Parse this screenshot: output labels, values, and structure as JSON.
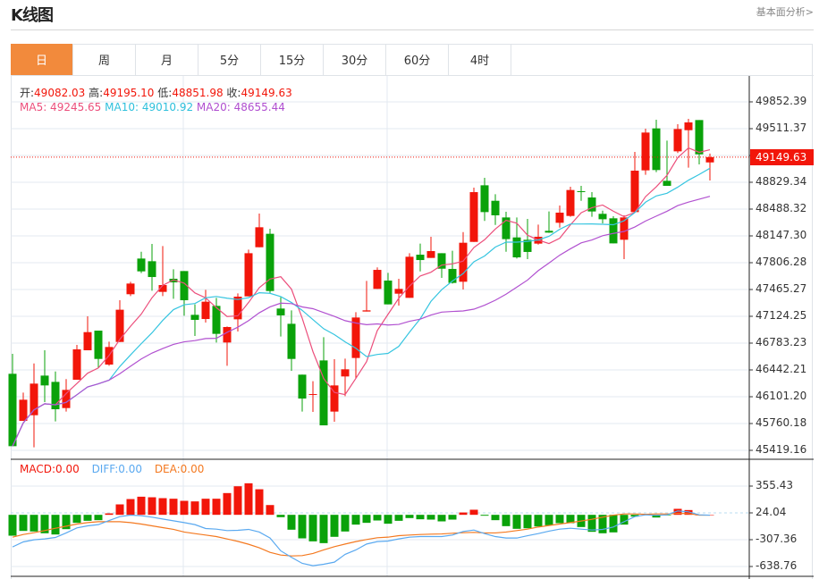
{
  "header": {
    "title": "K线图",
    "fundamental_link": "基本面分析>"
  },
  "tabs": [
    {
      "label": "日",
      "active": true
    },
    {
      "label": "周"
    },
    {
      "label": "月"
    },
    {
      "label": "5分"
    },
    {
      "label": "15分"
    },
    {
      "label": "30分"
    },
    {
      "label": "60分"
    },
    {
      "label": "4时"
    }
  ],
  "ohlc_info": {
    "open_label": "开:",
    "open": "49082.03",
    "high_label": "高:",
    "high": "49195.10",
    "low_label": "低:",
    "low": "48851.98",
    "close_label": "收:",
    "close": "49149.63"
  },
  "ma_info": {
    "ma5": "MA5: 49245.65",
    "ma10": "MA10: 49010.92",
    "ma20": "MA20: 48655.44"
  },
  "last_price_tag": "49149.63",
  "macd_info": {
    "macd": "MACD:0.00",
    "diff": "DIFF:0.00",
    "dea": "DEA:0.00"
  },
  "colors": {
    "up": "#f2160a",
    "down": "#0aa20a",
    "ma5": "#ec4f7c",
    "ma10": "#36c5e0",
    "ma20": "#b151d0",
    "diff": "#5aa9f0",
    "dea": "#f47920",
    "active_tab": "#f28a3c"
  },
  "chart_data": [
    {
      "type": "candlestick",
      "y_ticks": [
        "49852.39",
        "49511.37",
        "49170.35",
        "48829.34",
        "48488.32",
        "48147.30",
        "47806.28",
        "47465.27",
        "47124.25",
        "46783.23",
        "46442.21",
        "46101.20",
        "45760.18",
        "45419.16"
      ],
      "ylim": [
        45419.16,
        49852.39
      ],
      "grid": true,
      "ma_periods": [
        5,
        10,
        20
      ],
      "ohlc": [
        [
          46393,
          46647,
          45472,
          45472
        ],
        [
          45794,
          46154,
          45794,
          46063
        ],
        [
          45866,
          46525,
          45457,
          46268
        ],
        [
          46370,
          46692,
          46033,
          46245
        ],
        [
          46290,
          46423,
          45787,
          45942
        ],
        [
          45957,
          46325,
          45912,
          46188
        ],
        [
          46317,
          46760,
          46317,
          46704
        ],
        [
          46692,
          47124,
          46692,
          46923
        ],
        [
          46942,
          46942,
          46469,
          46582
        ],
        [
          46510,
          46802,
          46495,
          46734
        ],
        [
          46798,
          47329,
          46798,
          47208
        ],
        [
          47405,
          47564,
          47382,
          47541
        ],
        [
          47859,
          47946,
          47674,
          47696
        ],
        [
          47825,
          48045,
          47450,
          47624
        ],
        [
          47435,
          48018,
          47382,
          47522
        ],
        [
          47602,
          47723,
          47348,
          47556
        ],
        [
          47700,
          47700,
          47132,
          47329
        ],
        [
          47143,
          47276,
          46874,
          47079
        ],
        [
          47090,
          47461,
          47045,
          47310
        ],
        [
          47257,
          47359,
          46791,
          46901
        ],
        [
          46791,
          46995,
          46495,
          46988
        ],
        [
          47086,
          47416,
          46931,
          47374
        ],
        [
          47378,
          47973,
          47378,
          47927
        ],
        [
          48003,
          48431,
          48003,
          48257
        ],
        [
          48174,
          48238,
          47412,
          47446
        ],
        [
          47223,
          47367,
          46867,
          47136
        ],
        [
          47029,
          47200,
          46431,
          46582
        ],
        [
          46382,
          46382,
          45912,
          46078
        ],
        [
          46128,
          46298,
          45908,
          46135
        ],
        [
          46563,
          46859,
          45737,
          45737
        ],
        [
          45912,
          46579,
          45783,
          46245
        ],
        [
          46359,
          46586,
          46109,
          46450
        ],
        [
          46594,
          47177,
          46336,
          47109
        ],
        [
          47185,
          47575,
          47185,
          47200
        ],
        [
          47473,
          47746,
          47473,
          47715
        ],
        [
          47579,
          47677,
          47276,
          47276
        ],
        [
          47412,
          47602,
          47261,
          47473
        ],
        [
          47359,
          47927,
          47359,
          47882
        ],
        [
          47908,
          48049,
          47696,
          47840
        ],
        [
          47867,
          48136,
          47867,
          47954
        ],
        [
          47927,
          47927,
          47613,
          47730
        ],
        [
          47727,
          47958,
          47541,
          47549
        ],
        [
          47564,
          48196,
          47465,
          48060
        ],
        [
          48071,
          48761,
          48071,
          48704
        ],
        [
          48791,
          48886,
          48337,
          48450
        ],
        [
          48594,
          48678,
          48287,
          48409
        ],
        [
          48382,
          48454,
          47946,
          48106
        ],
        [
          48128,
          48382,
          47859,
          47874
        ],
        [
          48098,
          48363,
          47852,
          47943
        ],
        [
          48049,
          48291,
          48037,
          48136
        ],
        [
          48212,
          48458,
          48185,
          48189
        ],
        [
          48314,
          48534,
          48253,
          48443
        ],
        [
          48401,
          48772,
          48390,
          48731
        ],
        [
          48716,
          48784,
          48594,
          48708
        ],
        [
          48636,
          48704,
          48390,
          48458
        ],
        [
          48428,
          48469,
          48306,
          48359
        ],
        [
          48371,
          48397,
          48052,
          48052
        ],
        [
          48098,
          48409,
          47852,
          48382
        ],
        [
          48450,
          49216,
          48450,
          48977
        ],
        [
          48981,
          49511,
          48924,
          49462
        ],
        [
          49515,
          49625,
          48958,
          48985
        ],
        [
          48848,
          49360,
          48784,
          48784
        ],
        [
          49223,
          49568,
          49201,
          49507
        ],
        [
          49492,
          49636,
          49015,
          49591
        ],
        [
          49621,
          49621,
          49057,
          49185
        ],
        [
          49082.03,
          49195.1,
          48851.98,
          49149.63
        ]
      ],
      "last_price": 49149.63
    },
    {
      "type": "bar+line",
      "y_ticks": [
        "355.43",
        "24.04",
        "-307.36",
        "-638.76"
      ],
      "ylim": [
        -638.76,
        355.43
      ],
      "macd_hist": [
        -258,
        -199,
        -206,
        -228,
        -243,
        -177,
        -99,
        -74,
        -66,
        18,
        129,
        195,
        224,
        217,
        206,
        199,
        173,
        166,
        199,
        199,
        269,
        353,
        390,
        316,
        121,
        -29,
        -184,
        -291,
        -328,
        -350,
        -272,
        -206,
        -121,
        -99,
        -70,
        -110,
        -74,
        -40,
        -55,
        -59,
        -81,
        -59,
        29,
        63,
        -11,
        -66,
        -140,
        -173,
        -166,
        -144,
        -129,
        -103,
        -103,
        -151,
        -210,
        -228,
        -217,
        -121,
        -22,
        11,
        -33,
        -7,
        74,
        59,
        0,
        0
      ],
      "diff": [
        -397,
        -335,
        -309,
        -298,
        -280,
        -224,
        -162,
        -136,
        -121,
        -70,
        -22,
        -4,
        -11,
        -29,
        -52,
        -74,
        -96,
        -121,
        -169,
        -177,
        -195,
        -191,
        -180,
        -213,
        -287,
        -445,
        -526,
        -600,
        -629,
        -611,
        -585,
        -489,
        -434,
        -361,
        -331,
        -324,
        -298,
        -276,
        -269,
        -269,
        -269,
        -250,
        -206,
        -188,
        -232,
        -269,
        -287,
        -287,
        -258,
        -232,
        -202,
        -177,
        -166,
        -177,
        -188,
        -180,
        -151,
        -85,
        -22,
        0,
        -7,
        0,
        48,
        37,
        0,
        -4
      ],
      "dea": [
        -276,
        -243,
        -221,
        -195,
        -166,
        -140,
        -114,
        -96,
        -85,
        -85,
        -85,
        -96,
        -114,
        -136,
        -158,
        -180,
        -213,
        -232,
        -250,
        -269,
        -298,
        -328,
        -364,
        -408,
        -464,
        -497,
        -508,
        -504,
        -478,
        -434,
        -394,
        -361,
        -331,
        -305,
        -283,
        -276,
        -258,
        -250,
        -243,
        -239,
        -236,
        -228,
        -221,
        -217,
        -224,
        -224,
        -213,
        -195,
        -177,
        -151,
        -132,
        -114,
        -96,
        -77,
        -55,
        -29,
        -4,
        11,
        11,
        7,
        11,
        11,
        18,
        15,
        -4,
        -4
      ]
    }
  ]
}
